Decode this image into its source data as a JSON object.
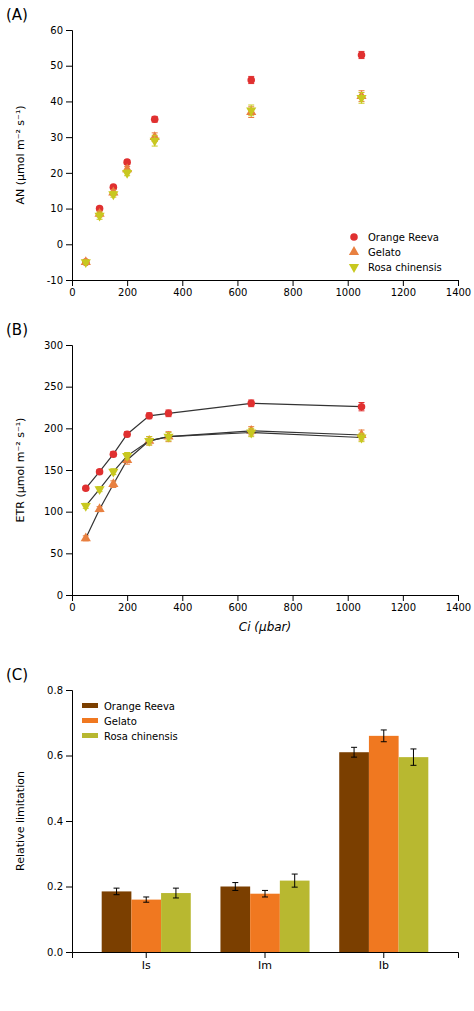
{
  "chart_data": [
    {
      "type": "scatter",
      "title": "(A)",
      "ylabel": "AN (µmol m⁻² s⁻¹)",
      "xlim": [
        0,
        1400
      ],
      "xticks": [
        0,
        200,
        400,
        600,
        800,
        1000,
        1200,
        1400
      ],
      "ylim": [
        -10,
        60
      ],
      "yticks": [
        -10,
        0,
        10,
        20,
        30,
        40,
        50,
        60
      ],
      "grid": false,
      "legend": "lower right",
      "series": [
        {
          "name": "Orange Reeva",
          "color": "#e03030",
          "marker": "circle",
          "x": [
            50,
            100,
            150,
            200,
            300,
            650,
            1050
          ],
          "values": [
            -5.0,
            10.0,
            16.0,
            23.0,
            35.0,
            46.0,
            53.0
          ],
          "errors": [
            0.5,
            0.5,
            0.5,
            0.6,
            0.8,
            1.0,
            1.0
          ]
        },
        {
          "name": "Gelato",
          "color": "#e88040",
          "marker": "triangle-up",
          "x": [
            50,
            100,
            150,
            200,
            300,
            650,
            1050
          ],
          "values": [
            -5.0,
            8.5,
            14.5,
            21.0,
            30.0,
            37.0,
            41.5
          ],
          "errors": [
            0.5,
            0.8,
            0.8,
            0.8,
            1.2,
            1.5,
            1.5
          ]
        },
        {
          "name": "Rosa chinensis",
          "color": "#c8c820",
          "marker": "triangle-down",
          "x": [
            50,
            100,
            150,
            200,
            300,
            650,
            1050
          ],
          "values": [
            -5.0,
            8.0,
            14.0,
            20.0,
            29.0,
            37.5,
            41.0
          ],
          "errors": [
            0.5,
            1.0,
            0.8,
            0.8,
            1.5,
            1.5,
            1.5
          ]
        }
      ]
    },
    {
      "type": "line",
      "title": "(B)",
      "ylabel": "ETR (µmol m⁻² s⁻¹)",
      "xlabel": "Ci (µbar)",
      "xlim": [
        0,
        1400
      ],
      "xticks": [
        0,
        200,
        400,
        600,
        800,
        1000,
        1200,
        1400
      ],
      "ylim": [
        0,
        300
      ],
      "yticks": [
        0,
        50,
        100,
        150,
        200,
        250,
        300
      ],
      "grid": false,
      "series": [
        {
          "color": "#e03030",
          "marker": "circle",
          "x": [
            50,
            100,
            150,
            200,
            280,
            350,
            650,
            1050
          ],
          "values": [
            128,
            148,
            169,
            193,
            215,
            218,
            230,
            226
          ],
          "errors": [
            2.0,
            2.5,
            3.0,
            3.0,
            3.5,
            4.0,
            4.0,
            5.0
          ]
        },
        {
          "color": "#e88040",
          "marker": "triangle-up",
          "x": [
            50,
            100,
            150,
            200,
            280,
            350,
            650,
            1050
          ],
          "values": [
            68,
            103,
            133,
            162,
            185,
            190,
            197,
            192
          ],
          "errors": [
            3.0,
            3.0,
            4.0,
            5.0,
            5.0,
            6.0,
            5.0,
            6.0
          ]
        },
        {
          "color": "#c8c820",
          "marker": "triangle-down",
          "x": [
            50,
            100,
            150,
            200,
            280,
            350,
            650,
            1050
          ],
          "values": [
            107,
            127,
            148,
            167,
            185,
            190,
            195,
            189
          ],
          "errors": [
            3.0,
            3.0,
            3.5,
            4.0,
            5.0,
            5.0,
            5.0,
            5.0
          ]
        }
      ]
    },
    {
      "type": "bar",
      "title": "(C)",
      "ylabel": "Relative limitation",
      "categories": [
        "Is",
        "Im",
        "Ib"
      ],
      "ylim": [
        0.0,
        0.8
      ],
      "yticks": [
        {
          "value": 0.0,
          "label": "0.0"
        },
        0.2,
        0.4,
        0.6,
        0.8
      ],
      "grid": false,
      "legend": "upper left",
      "series": [
        {
          "name": "Orange Reeva",
          "color": "#7B3F00",
          "values": [
            0.185,
            0.2,
            0.61
          ],
          "errors": [
            0.01,
            0.012,
            0.015
          ]
        },
        {
          "name": "Gelato",
          "color": "#F07820",
          "values": [
            0.16,
            0.178,
            0.66
          ],
          "errors": [
            0.008,
            0.01,
            0.018
          ]
        },
        {
          "name": "Rosa chinensis",
          "color": "#b8b830",
          "values": [
            0.18,
            0.218,
            0.595
          ],
          "errors": [
            0.015,
            0.02,
            0.025
          ]
        }
      ]
    }
  ]
}
